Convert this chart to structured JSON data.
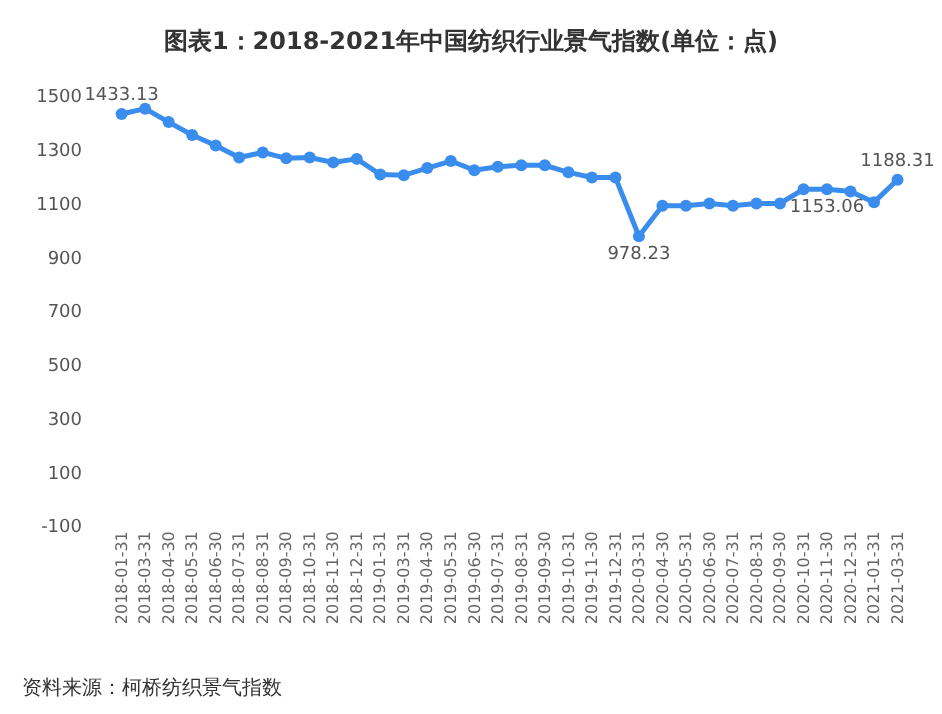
{
  "chart_data": {
    "type": "line",
    "title": "图表1：2018-2021年中国纺织行业景气指数(单位：点)",
    "categories": [
      "2018-01-31",
      "2018-03-31",
      "2018-04-30",
      "2018-05-31",
      "2018-06-30",
      "2018-07-31",
      "2018-08-31",
      "2018-09-30",
      "2018-10-31",
      "2018-11-30",
      "2018-12-31",
      "2019-01-31",
      "2019-03-31",
      "2019-04-30",
      "2019-05-31",
      "2019-06-30",
      "2019-07-31",
      "2019-08-31",
      "2019-09-30",
      "2019-10-31",
      "2019-11-30",
      "2019-12-31",
      "2020-03-31",
      "2020-04-30",
      "2020-05-31",
      "2020-06-30",
      "2020-07-31",
      "2020-08-31",
      "2020-09-30",
      "2020-10-31",
      "2020-11-30",
      "2020-12-31",
      "2021-01-31",
      "2021-03-31"
    ],
    "series": [
      {
        "color": "#3b8ded",
        "values": [
          1433.13,
          1453,
          1403,
          1355,
          1316,
          1271,
          1290,
          1268,
          1271,
          1253,
          1266,
          1208,
          1205,
          1232,
          1258,
          1224,
          1237,
          1242,
          1242,
          1216,
          1197,
          1197,
          978.23,
          1092,
          1092,
          1100,
          1092,
          1100,
          1100,
          1153,
          1153.06,
          1145,
          1105,
          1188.31
        ],
        "value_labels": [
          "1433.13",
          null,
          null,
          null,
          null,
          null,
          null,
          null,
          null,
          null,
          null,
          null,
          null,
          null,
          null,
          null,
          null,
          null,
          null,
          null,
          null,
          null,
          "978.23",
          null,
          null,
          null,
          null,
          null,
          null,
          null,
          "1153.06",
          null,
          null,
          "1188.31"
        ]
      }
    ],
    "ylim": [
      -100,
      1500
    ],
    "yticks": [
      -100,
      100,
      300,
      500,
      700,
      900,
      1100,
      1300,
      1500
    ],
    "marker": "circle",
    "line_style": "solid",
    "annotations": [
      "资料来源：柯桥纺织景气指数"
    ]
  }
}
